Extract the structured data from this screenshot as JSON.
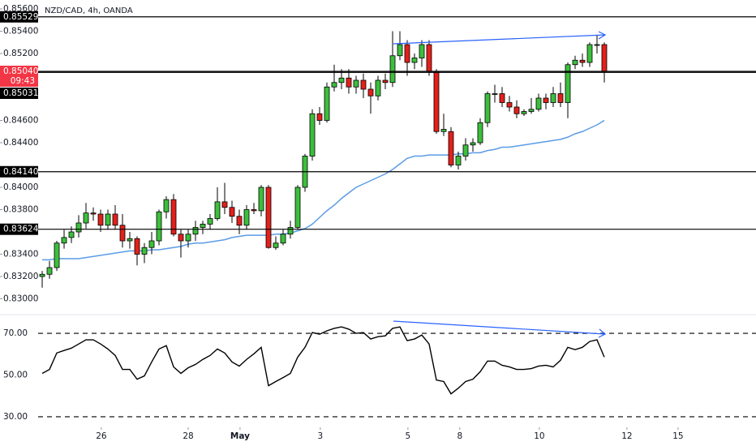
{
  "chart_data": [
    {
      "type": "candlestick",
      "title": "NZD/CAD, 4h, OANDA",
      "xlim": [
        -5.78,
        97.78
      ],
      "ylim": [
        0.8288,
        0.8568
      ],
      "yticks": [
        {
          "value": 0.856,
          "label": "0.85600"
        },
        {
          "value": 0.854,
          "label": "0.85400"
        },
        {
          "value": 0.852,
          "label": "0.85200"
        },
        {
          "value": 0.846,
          "label": "0.84600"
        },
        {
          "value": 0.844,
          "label": "0.84400"
        },
        {
          "value": 0.84,
          "label": "0.84000"
        },
        {
          "value": 0.838,
          "label": "0.83800"
        },
        {
          "value": 0.834,
          "label": "0.83400"
        },
        {
          "value": 0.832,
          "label": "0.83200"
        },
        {
          "value": 0.83,
          "label": "0.83000"
        }
      ],
      "xticks": [
        {
          "value": 8.1,
          "label": "26"
        },
        {
          "value": 20.0,
          "label": "28"
        },
        {
          "value": 27.1,
          "label": "May"
        },
        {
          "value": 38.1,
          "label": "3"
        },
        {
          "value": 50.1,
          "label": "5"
        },
        {
          "value": 57.2,
          "label": "8"
        },
        {
          "value": 68.1,
          "label": "10"
        },
        {
          "value": 80.1,
          "label": "12"
        },
        {
          "value": 87.1,
          "label": "15"
        }
      ],
      "up_color": "#3cbf3c",
      "down_color": "#e3201b",
      "open": [
        0.832,
        0.8322,
        0.8328,
        0.835,
        0.8355,
        0.836,
        0.8368,
        0.8377,
        0.8376,
        0.8366,
        0.8376,
        0.8366,
        0.8352,
        0.8354,
        0.834,
        0.8346,
        0.8352,
        0.8378,
        0.8389,
        0.8358,
        0.8352,
        0.8358,
        0.8364,
        0.8367,
        0.8372,
        0.8387,
        0.8382,
        0.8374,
        0.8366,
        0.838,
        0.8379,
        0.84,
        0.8346,
        0.835,
        0.8358,
        0.8364,
        0.84,
        0.8428,
        0.8466,
        0.846,
        0.849,
        0.8494,
        0.8498,
        0.849,
        0.8496,
        0.8488,
        0.8482,
        0.8496,
        0.8494,
        0.8518,
        0.8528,
        0.8512,
        0.8516,
        0.8528,
        0.8504,
        0.845,
        0.845,
        0.842,
        0.8428,
        0.8438,
        0.844,
        0.8458,
        0.8484,
        0.8484,
        0.8476,
        0.8472,
        0.8466,
        0.8468,
        0.847,
        0.848,
        0.8476,
        0.8484,
        0.8476,
        0.851,
        0.8514,
        0.8512,
        0.8528,
        0.8528
      ],
      "high": [
        0.8325,
        0.8334,
        0.8352,
        0.8362,
        0.8365,
        0.8375,
        0.8386,
        0.8382,
        0.838,
        0.838,
        0.8384,
        0.8376,
        0.836,
        0.8356,
        0.835,
        0.836,
        0.838,
        0.8392,
        0.8394,
        0.8362,
        0.8362,
        0.837,
        0.837,
        0.8376,
        0.84,
        0.8404,
        0.8388,
        0.838,
        0.8384,
        0.8386,
        0.8402,
        0.8402,
        0.8356,
        0.8362,
        0.837,
        0.8402,
        0.843,
        0.847,
        0.8472,
        0.8494,
        0.851,
        0.8506,
        0.8506,
        0.85,
        0.8502,
        0.8494,
        0.85,
        0.8502,
        0.854,
        0.854,
        0.8532,
        0.852,
        0.8532,
        0.8532,
        0.8506,
        0.8466,
        0.8454,
        0.8432,
        0.8444,
        0.8444,
        0.8462,
        0.8486,
        0.8492,
        0.849,
        0.8482,
        0.8478,
        0.847,
        0.848,
        0.8484,
        0.8484,
        0.849,
        0.8494,
        0.8512,
        0.8518,
        0.852,
        0.853,
        0.8536,
        0.853
      ],
      "low": [
        0.831,
        0.8318,
        0.8325,
        0.8345,
        0.835,
        0.8355,
        0.8363,
        0.837,
        0.836,
        0.8362,
        0.8362,
        0.8346,
        0.8345,
        0.833,
        0.8332,
        0.834,
        0.8348,
        0.8372,
        0.8356,
        0.8337,
        0.8346,
        0.8352,
        0.8358,
        0.8362,
        0.837,
        0.8376,
        0.8368,
        0.8358,
        0.8362,
        0.8376,
        0.8374,
        0.8345,
        0.8344,
        0.8348,
        0.8354,
        0.8362,
        0.8396,
        0.8424,
        0.8456,
        0.8458,
        0.8486,
        0.8488,
        0.8484,
        0.8484,
        0.848,
        0.8466,
        0.8478,
        0.8488,
        0.849,
        0.8514,
        0.85,
        0.8506,
        0.8508,
        0.85,
        0.8448,
        0.8446,
        0.8418,
        0.8416,
        0.8424,
        0.8432,
        0.8438,
        0.8454,
        0.8476,
        0.8472,
        0.8468,
        0.8462,
        0.8464,
        0.8466,
        0.8468,
        0.847,
        0.8472,
        0.8472,
        0.8462,
        0.8506,
        0.8508,
        0.8508,
        0.852,
        0.8494
      ],
      "close": [
        0.8322,
        0.8328,
        0.835,
        0.8355,
        0.836,
        0.8368,
        0.8377,
        0.8376,
        0.8366,
        0.8376,
        0.8366,
        0.8352,
        0.8354,
        0.834,
        0.8346,
        0.8352,
        0.8378,
        0.8389,
        0.8358,
        0.8352,
        0.8358,
        0.8364,
        0.8367,
        0.8372,
        0.8387,
        0.8382,
        0.8374,
        0.8366,
        0.838,
        0.8379,
        0.84,
        0.8346,
        0.835,
        0.8358,
        0.8364,
        0.84,
        0.8428,
        0.8466,
        0.846,
        0.849,
        0.8494,
        0.8498,
        0.849,
        0.8496,
        0.8488,
        0.8482,
        0.8496,
        0.8494,
        0.8518,
        0.8528,
        0.8512,
        0.8516,
        0.8528,
        0.8504,
        0.845,
        0.8452,
        0.842,
        0.8428,
        0.8438,
        0.844,
        0.8458,
        0.8484,
        0.8484,
        0.8476,
        0.8472,
        0.8466,
        0.8468,
        0.847,
        0.848,
        0.8476,
        0.8484,
        0.8476,
        0.851,
        0.8514,
        0.8512,
        0.8528,
        0.8528,
        0.8504
      ],
      "ma": {
        "color": "#5b9ce6",
        "values": [
          0.8335,
          0.8335,
          0.8336,
          0.8336,
          0.8336,
          0.8336,
          0.8337,
          0.8338,
          0.8339,
          0.834,
          0.8341,
          0.8342,
          0.8343,
          0.8343,
          0.8343,
          0.8344,
          0.8344,
          0.8345,
          0.8346,
          0.8347,
          0.8349,
          0.835,
          0.835,
          0.8351,
          0.8352,
          0.8353,
          0.8355,
          0.8356,
          0.8357,
          0.8357,
          0.8357,
          0.8357,
          0.8358,
          0.8358,
          0.8359,
          0.8361,
          0.8363,
          0.8367,
          0.8373,
          0.8379,
          0.8384,
          0.839,
          0.8395,
          0.84,
          0.8403,
          0.8406,
          0.8409,
          0.8412,
          0.8416,
          0.8421,
          0.8426,
          0.8428,
          0.8428,
          0.8429,
          0.8429,
          0.8429,
          0.8429,
          0.843,
          0.843,
          0.8431,
          0.8431,
          0.8433,
          0.8434,
          0.8436,
          0.8436,
          0.8437,
          0.8438,
          0.8439,
          0.844,
          0.8441,
          0.8442,
          0.8443,
          0.8445,
          0.8448,
          0.845,
          0.8453,
          0.8456,
          0.846
        ]
      },
      "levels": [
        {
          "value": 0.85529,
          "label": "0.85529"
        },
        {
          "value": 0.8504,
          "label": "0.85040",
          "color": "#f23645",
          "countdown": "09:43"
        },
        {
          "value": 0.85031,
          "label": "0.85031"
        },
        {
          "value": 0.8414,
          "label": "0.84140"
        },
        {
          "value": 0.83624,
          "label": "0.83624"
        }
      ]
    },
    {
      "type": "line",
      "ylim": [
        25.7,
        78.2
      ],
      "yticks": [
        {
          "value": 70,
          "label": "70.00"
        },
        {
          "value": 50,
          "label": "50.00"
        },
        {
          "value": 30,
          "label": "30.00"
        }
      ],
      "reference_lines": [
        70,
        30
      ],
      "color": "#000000",
      "values": [
        50.8,
        52.7,
        60.6,
        61.8,
        62.9,
        64.9,
        66.9,
        66.9,
        64.9,
        62.5,
        59.4,
        52.7,
        52.7,
        48.0,
        49.6,
        56.3,
        62.5,
        64.1,
        53.9,
        50.8,
        53.5,
        55.1,
        57.5,
        59.4,
        62.5,
        60.6,
        56.3,
        54.3,
        57.5,
        60.2,
        63.3,
        44.9,
        46.9,
        48.8,
        50.8,
        58.6,
        63.3,
        70.4,
        69.6,
        71.2,
        72.4,
        73.1,
        72.0,
        70.0,
        70.4,
        67.3,
        68.4,
        68.8,
        72.4,
        73.1,
        66.5,
        67.3,
        69.2,
        64.9,
        47.6,
        46.9,
        41.0,
        43.7,
        46.9,
        48.0,
        51.6,
        56.7,
        56.7,
        54.7,
        53.9,
        52.7,
        52.7,
        53.1,
        54.3,
        54.7,
        53.9,
        57.1,
        63.3,
        62.2,
        63.3,
        66.1,
        66.9,
        58.6
      ]
    }
  ]
}
